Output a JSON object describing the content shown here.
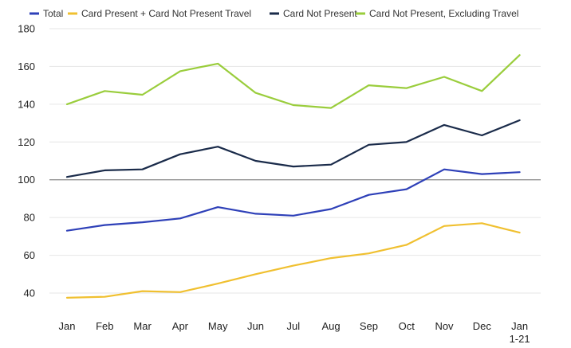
{
  "chart_data": {
    "type": "line",
    "title": "",
    "xlabel": "",
    "ylabel": "",
    "categories": [
      "Jan",
      "Feb",
      "Mar",
      "Apr",
      "May",
      "Jun",
      "Jul",
      "Aug",
      "Sep",
      "Oct",
      "Nov",
      "Dec",
      "Jan\n1-21"
    ],
    "ylim": [
      40,
      180
    ],
    "yticks": [
      40,
      60,
      80,
      100,
      120,
      140,
      160,
      180
    ],
    "grid": true,
    "reference_line": 100,
    "legend_position": "top-left",
    "series": [
      {
        "name": "Total",
        "color": "#2E40B8",
        "values": [
          73,
          76,
          77.5,
          79.5,
          85.5,
          82,
          81,
          84.5,
          92,
          95,
          105.5,
          103,
          104
        ]
      },
      {
        "name": "Card Present + Card Not Present Travel",
        "color": "#F0C030",
        "values": [
          37.5,
          38,
          41,
          40.5,
          45,
          50,
          54.5,
          58.5,
          61,
          65.5,
          75.5,
          77,
          72
        ]
      },
      {
        "name": "Card Not Present",
        "color": "#1A2B4A",
        "values": [
          101.5,
          105,
          105.5,
          113.5,
          117.5,
          110,
          107,
          108,
          118.5,
          120,
          129,
          123.5,
          131.5
        ]
      },
      {
        "name": "Card Not Present, Excluding Travel",
        "color": "#9ACD3C",
        "values": [
          140,
          147,
          145,
          157.5,
          161.5,
          146,
          139.5,
          138,
          150,
          148.5,
          154.5,
          147,
          166
        ]
      }
    ]
  }
}
